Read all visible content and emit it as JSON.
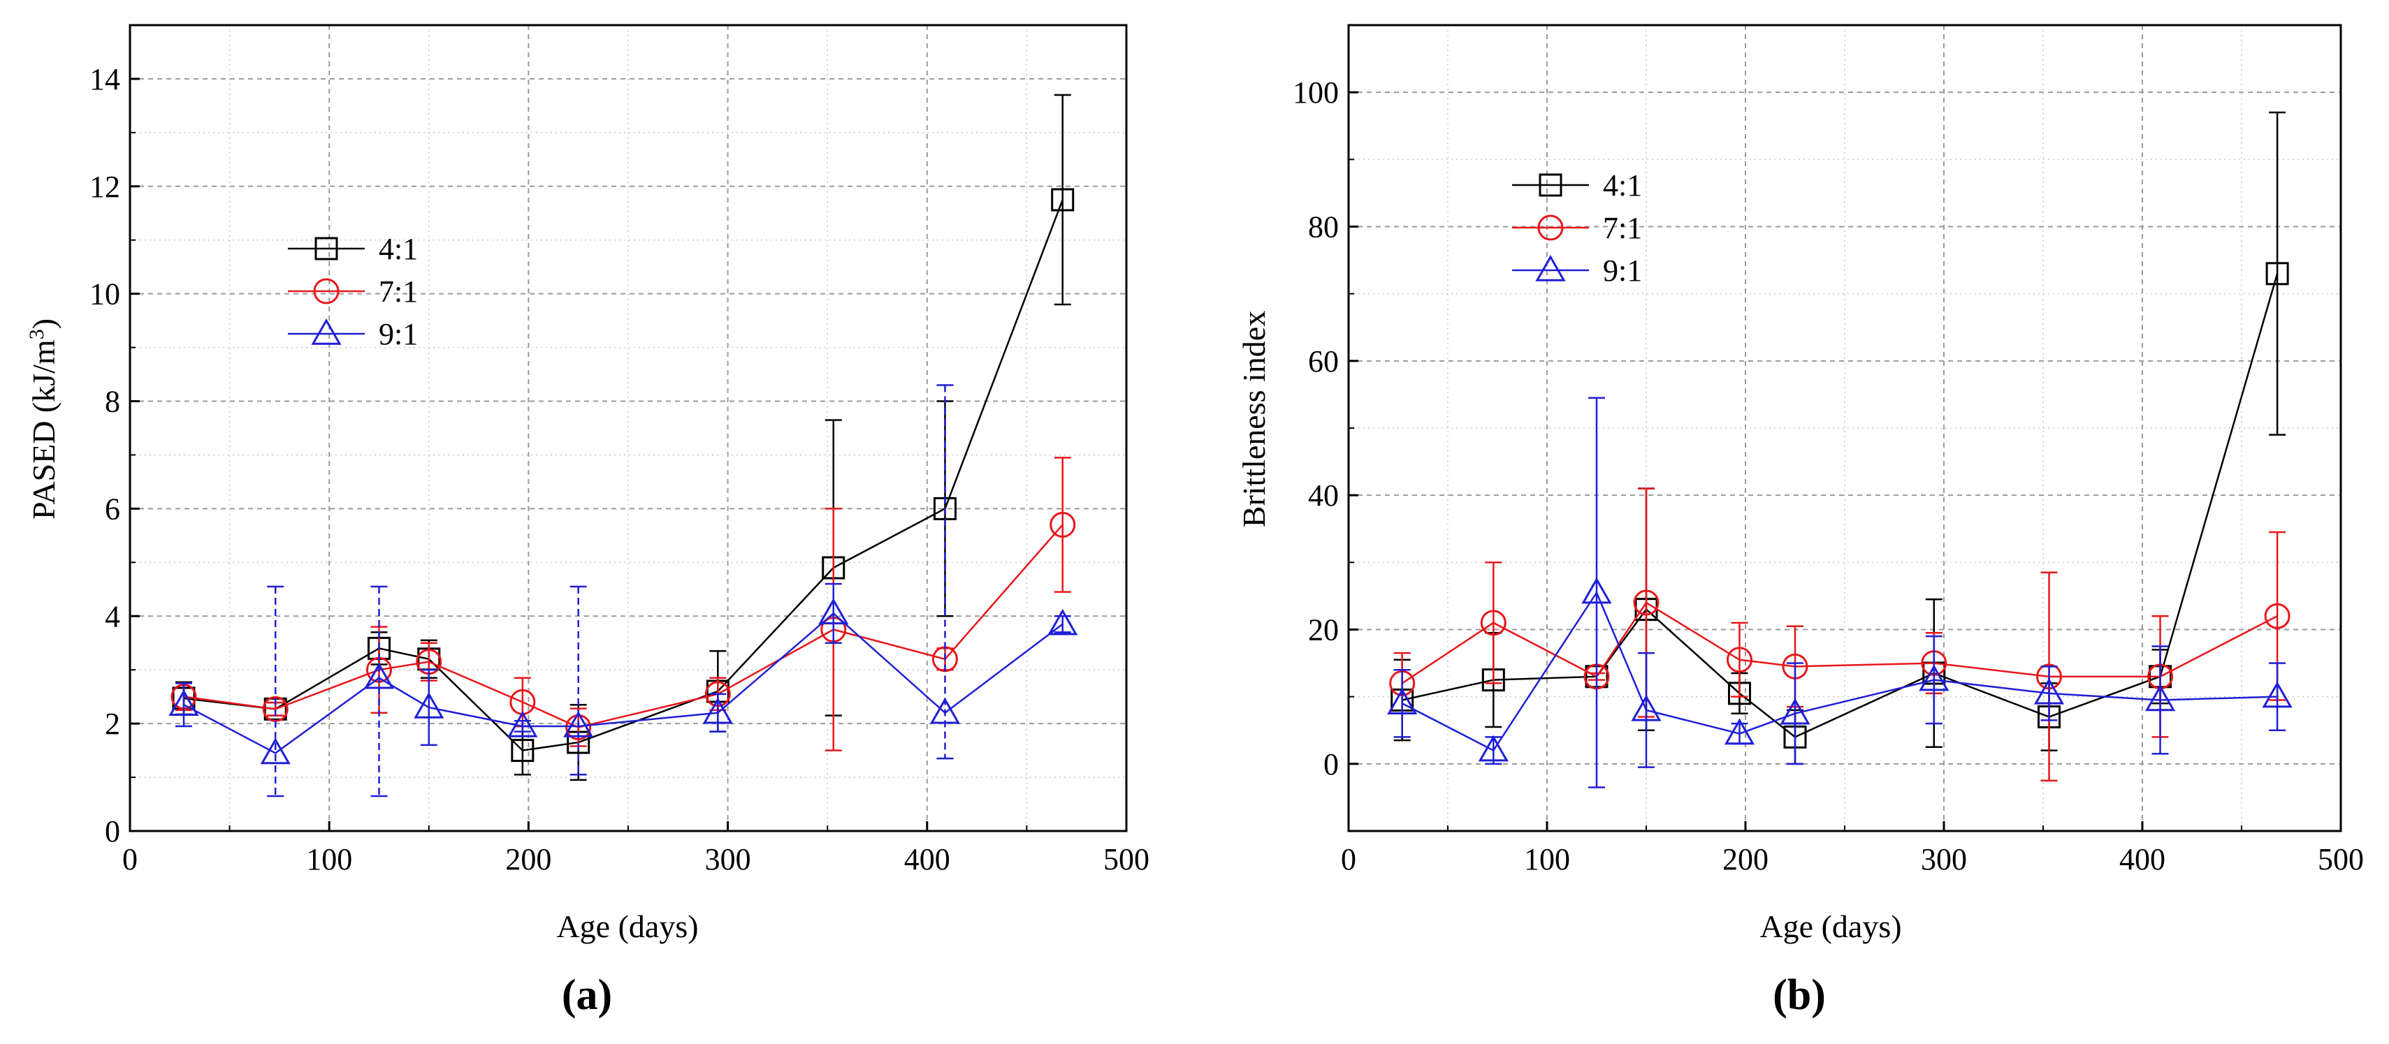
{
  "colors": {
    "series_4_1": "#000000",
    "series_7_1": "#e8161b",
    "series_9_1": "#1f1fd6",
    "grid": "#9a9a9a"
  },
  "chart_data": [
    {
      "panel": "(a)",
      "type": "line",
      "xlabel": "Age (days)",
      "ylabel": "PASED (kJ/m3)",
      "ylabel_main": "PASED (kJ/m",
      "ylabel_sup": "3",
      "ylabel_close": ")",
      "xlim": [
        0,
        500
      ],
      "ylim": [
        0,
        15
      ],
      "xticks": [
        0,
        100,
        200,
        300,
        400,
        500
      ],
      "yticks": [
        0,
        2,
        4,
        6,
        8,
        10,
        12,
        14
      ],
      "legend_position": "upper-left",
      "series": [
        {
          "name": "4:1",
          "marker": "square",
          "x": [
            27,
            73,
            125,
            150,
            197,
            225,
            295,
            353,
            409,
            468
          ],
          "y": [
            2.47,
            2.27,
            3.4,
            3.2,
            1.5,
            1.65,
            2.6,
            4.9,
            6.0,
            11.75
          ],
          "err": [
            0.3,
            0.12,
            0.3,
            0.35,
            0.45,
            0.7,
            0.75,
            2.75,
            2.0,
            1.95
          ],
          "dashed": [
            false,
            false,
            false,
            false,
            false,
            false,
            false,
            false,
            false,
            false
          ]
        },
        {
          "name": "7:1",
          "marker": "circle",
          "x": [
            27,
            73,
            125,
            150,
            197,
            225,
            295,
            353,
            409,
            468
          ],
          "y": [
            2.5,
            2.27,
            3.0,
            3.15,
            2.4,
            1.93,
            2.55,
            3.75,
            3.2,
            5.7
          ],
          "err": [
            0.25,
            0.12,
            0.8,
            0.35,
            0.45,
            0.35,
            0.3,
            2.25,
            0.2,
            1.25
          ],
          "dashed": [
            false,
            false,
            false,
            false,
            false,
            false,
            false,
            false,
            false,
            false
          ]
        },
        {
          "name": "9:1",
          "marker": "triangle",
          "x": [
            27,
            73,
            125,
            150,
            197,
            225,
            295,
            353,
            409,
            468
          ],
          "y": [
            2.35,
            1.45,
            2.85,
            2.3,
            1.95,
            1.95,
            2.2,
            4.05,
            2.2,
            3.85
          ],
          "err": [
            0.4,
            3.1,
            0.9,
            0.7,
            0.1,
            2.6,
            0.35,
            0.55,
            0.3,
            0.15
          ],
          "err_up": [
            0.4,
            3.1,
            1.7,
            0.7,
            0.1,
            2.6,
            0.35,
            0.55,
            6.1,
            0.15
          ],
          "err_down": [
            0.4,
            0.8,
            2.2,
            0.7,
            0.1,
            0.9,
            0.35,
            0.55,
            0.85,
            0.15
          ],
          "dashed": [
            false,
            true,
            true,
            false,
            false,
            true,
            false,
            false,
            true,
            false
          ]
        }
      ]
    },
    {
      "panel": "(b)",
      "type": "line",
      "xlabel": "Age (days)",
      "ylabel": "Brittleness index",
      "xlim": [
        0,
        500
      ],
      "ylim": [
        -10,
        110
      ],
      "xticks": [
        0,
        100,
        200,
        300,
        400,
        500
      ],
      "yticks": [
        0,
        20,
        40,
        60,
        80,
        100
      ],
      "legend_position": "upper-left",
      "series": [
        {
          "name": "4:1",
          "marker": "square",
          "x": [
            27,
            73,
            125,
            150,
            197,
            225,
            295,
            353,
            409,
            468
          ],
          "y": [
            9.5,
            12.5,
            13.0,
            23.0,
            10.5,
            4.0,
            13.5,
            7.0,
            13.0,
            73.0
          ],
          "err": [
            6.0,
            7.0,
            0.0,
            18.0,
            3.0,
            4.0,
            11.0,
            5.0,
            4.0,
            24.0
          ]
        },
        {
          "name": "7:1",
          "marker": "circle",
          "x": [
            27,
            73,
            125,
            150,
            197,
            225,
            295,
            353,
            409,
            468
          ],
          "y": [
            12.0,
            21.0,
            13.0,
            24.0,
            15.5,
            14.5,
            15.0,
            13.0,
            13.0,
            22.0
          ],
          "err": [
            4.5,
            9.0,
            0.5,
            17.0,
            5.5,
            6.0,
            4.5,
            15.5,
            9.0,
            12.5
          ]
        },
        {
          "name": "9:1",
          "marker": "triangle",
          "x": [
            27,
            73,
            125,
            150,
            197,
            225,
            295,
            353,
            409,
            468
          ],
          "y": [
            9.0,
            2.0,
            25.5,
            8.0,
            4.5,
            7.5,
            12.5,
            10.5,
            9.5,
            10.0
          ],
          "err": [
            5.0,
            2.0,
            29.0,
            8.5,
            1.5,
            7.5,
            6.5,
            4.0,
            8.0,
            5.0
          ]
        }
      ]
    }
  ]
}
